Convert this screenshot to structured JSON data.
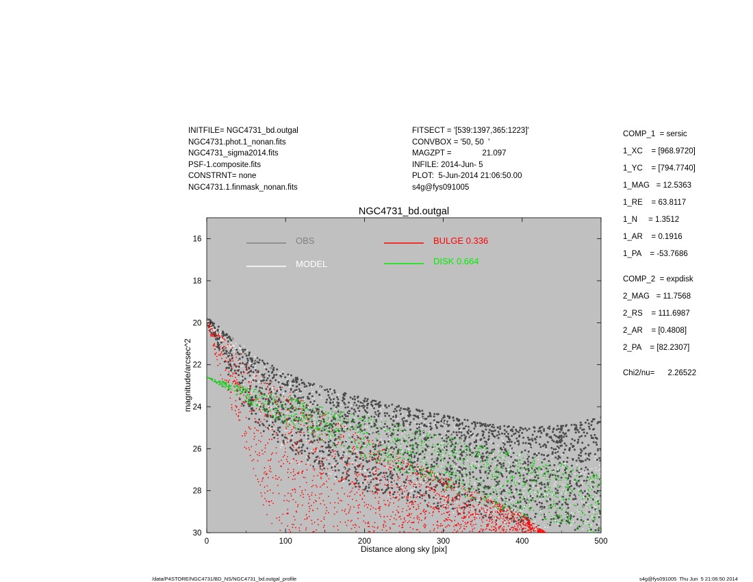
{
  "header_left": [
    "INITFILE= NGC4731_bd.outgal",
    "NGC4731.phot.1_nonan.fits",
    "NGC4731_sigma2014.fits",
    "PSF-1.composite.fits",
    "CONSTRNT= none",
    "NGC4731.1.finmask_nonan.fits"
  ],
  "header_mid": [
    "FITSECT = '[539:1397,365:1223]'",
    "CONVBOX = '50, 50  '",
    "MAGZPT =              21.097",
    "INFILE: 2014-Jun- 5",
    "PLOT:  5-Jun-2014 21:06:50.00",
    "s4g@fys091005"
  ],
  "params": [
    "COMP_1  = sersic",
    "1_XC    = [968.9720]",
    "1_YC    = [794.7740]",
    "1_MAG   = 12.5363",
    "1_RE    = 63.8117",
    "1_N     = 1.3512",
    "1_AR    = 0.1916",
    "1_PA    = -53.7686",
    "COMP_2  = expdisk",
    "2_MAG   = 11.7568",
    "2_RS    = 111.6987",
    "2_AR    = [0.4808]",
    "2_PA    = [82.2307]",
    "Chi2/nu=      2.26522"
  ],
  "footer": {
    "path": "/data/P4STORE/NGC4731/BD_NS/NGC4731_bd.outgal_profile",
    "stamp": "s4g@fys091005  Thu Jun  5 21:06:50 2014"
  },
  "chart_data": {
    "type": "scatter",
    "title": "NGC4731_bd.outgal",
    "xlabel": "Distance along sky [pix]",
    "ylabel": "magnitude/arcsec^2",
    "xlim": [
      0,
      500
    ],
    "ylim": [
      30,
      15
    ],
    "y_inverted": true,
    "x_ticks": [
      "0",
      "100",
      "200",
      "300",
      "400",
      "500"
    ],
    "y_ticks": [
      "16",
      "18",
      "20",
      "22",
      "24",
      "26",
      "28",
      "30"
    ],
    "background": "#c0c0c0",
    "grid": false,
    "legend": [
      {
        "label": "OBS",
        "color": "#808080"
      },
      {
        "label": "MODEL",
        "color": "#ffffff"
      },
      {
        "label": "BULGE  0.336",
        "color": "#ff0000"
      },
      {
        "label": "DISK  0.664",
        "color": "#00ee00"
      }
    ],
    "series": [
      {
        "name": "OBS",
        "color": "#4a4a4a",
        "upper_envelope": [
          [
            0,
            19.7
          ],
          [
            50,
            21.3
          ],
          [
            100,
            22.4
          ],
          [
            150,
            23.1
          ],
          [
            200,
            23.6
          ],
          [
            250,
            24.0
          ],
          [
            300,
            24.4
          ],
          [
            350,
            24.8
          ],
          [
            400,
            25.0
          ],
          [
            450,
            24.9
          ],
          [
            500,
            24.5
          ]
        ],
        "lower_envelope": [
          [
            0,
            20.0
          ],
          [
            50,
            24.5
          ],
          [
            100,
            26.0
          ],
          [
            150,
            27.2
          ],
          [
            200,
            28.0
          ],
          [
            250,
            28.5
          ],
          [
            300,
            29.0
          ],
          [
            350,
            29.3
          ],
          [
            400,
            29.6
          ],
          [
            450,
            29.8
          ],
          [
            500,
            30.0
          ]
        ]
      },
      {
        "name": "MODEL",
        "color": "#ffffff",
        "upper_envelope": [
          [
            0,
            19.9
          ],
          [
            100,
            22.4
          ],
          [
            200,
            23.7
          ],
          [
            300,
            24.6
          ],
          [
            400,
            25.6
          ],
          [
            500,
            26.3
          ]
        ],
        "lower_envelope": [
          [
            0,
            20.0
          ],
          [
            100,
            26.5
          ],
          [
            200,
            28.0
          ],
          [
            300,
            29.0
          ],
          [
            400,
            29.8
          ],
          [
            500,
            30.0
          ]
        ]
      },
      {
        "name": "BULGE",
        "color": "#ff0000",
        "upper_envelope": [
          [
            0,
            19.9
          ],
          [
            50,
            21.7
          ],
          [
            100,
            23.1
          ],
          [
            150,
            24.3
          ],
          [
            200,
            25.4
          ],
          [
            250,
            26.4
          ],
          [
            300,
            27.3
          ],
          [
            350,
            28.2
          ],
          [
            400,
            29.1
          ],
          [
            430,
            30.0
          ]
        ],
        "lower_envelope": [
          [
            0,
            20.0
          ],
          [
            20,
            22.9
          ],
          [
            40,
            25.0
          ],
          [
            60,
            27.3
          ],
          [
            82,
            30.0
          ]
        ]
      },
      {
        "name": "DISK",
        "color": "#00cc00",
        "upper_envelope": [
          [
            0,
            22.6
          ],
          [
            100,
            23.5
          ],
          [
            200,
            24.4
          ],
          [
            300,
            25.4
          ],
          [
            380,
            26.0
          ],
          [
            500,
            27.2
          ]
        ],
        "lower_envelope": [
          [
            0,
            22.6
          ],
          [
            100,
            24.9
          ],
          [
            200,
            26.5
          ],
          [
            300,
            28.0
          ],
          [
            400,
            29.3
          ],
          [
            480,
            30.0
          ]
        ]
      }
    ]
  }
}
